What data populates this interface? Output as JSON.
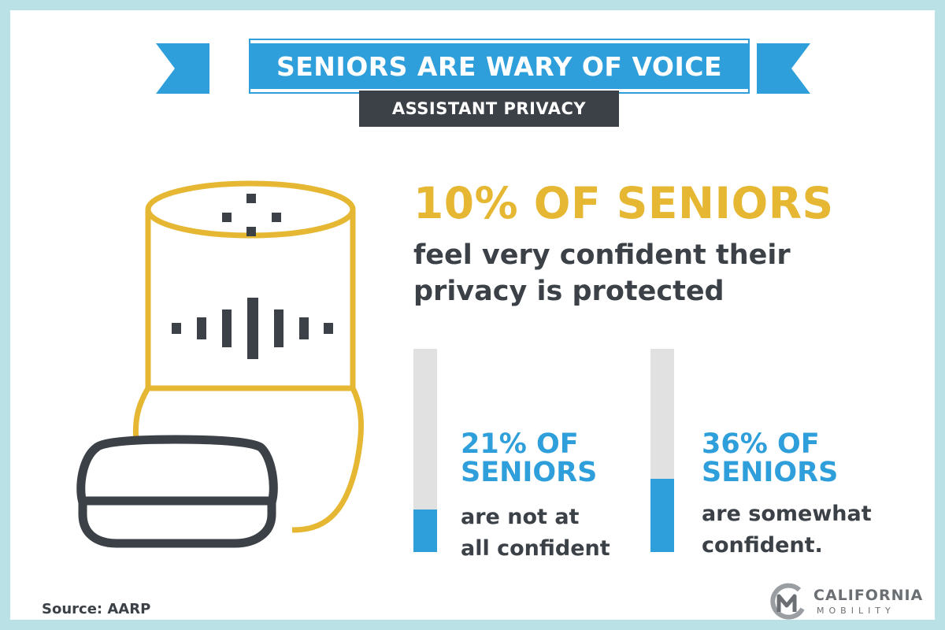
{
  "header": {
    "title": "SENIORS ARE WARY OF VOICE",
    "subtitle": "ASSISTANT PRIVACY"
  },
  "headline_stat": {
    "value": "10% OF SENIORS",
    "description": "feel very confident their privacy is protected"
  },
  "stats": [
    {
      "value_line1": "21% OF",
      "value_line2": "SENIORS",
      "desc_line1": "are not at",
      "desc_line2": "all confident",
      "fill_fraction": 0.21
    },
    {
      "value_line1": "36% OF",
      "value_line2": "SENIORS",
      "desc_line1": "are somewhat",
      "desc_line2": "confident.",
      "fill_fraction": 0.36
    }
  ],
  "footer": {
    "source": "Source: AARP"
  },
  "logo": {
    "name": "CALIFORNIA",
    "sub": "MOBILITY"
  },
  "colors": {
    "border": "#b9e1e6",
    "accent_blue": "#2f9fdb",
    "accent_gold": "#e6b733",
    "dark": "#3b4146",
    "track_gray": "#e1e1e1"
  },
  "icons": [
    "smart-speaker-icon",
    "smart-speaker-mini-icon",
    "california-mobility-logo-icon"
  ]
}
